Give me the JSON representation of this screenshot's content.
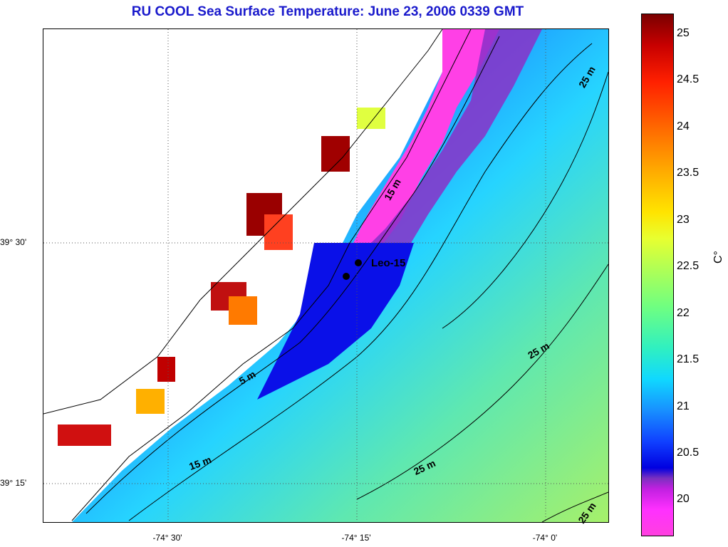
{
  "title": "RU COOL  Sea Surface Temperature:  June 23, 2006 0339 GMT",
  "lat_labels": [
    "39° 30'",
    "39° 15'"
  ],
  "lon_labels": [
    "-74° 30'",
    "-74° 15'",
    "-74° 0'"
  ],
  "contour_labels": [
    "25 m",
    "15 m",
    "5 m",
    "25 m",
    "15 m",
    "25 m",
    "25 m"
  ],
  "station": "Leo-15",
  "colorbar": {
    "ticks": [
      "25",
      "24.5",
      "24",
      "23.5",
      "23",
      "22.5",
      "22",
      "21.5",
      "21",
      "20.5",
      "20"
    ],
    "unit": "C°"
  },
  "colors": {
    "title": "#1a1acc",
    "land": "#ffffff",
    "coast_warm": "#8b0000",
    "nearshore_cold": "#0000e0",
    "offshore_cyan": "#20d0ff",
    "offshore_green": "#90f070"
  }
}
